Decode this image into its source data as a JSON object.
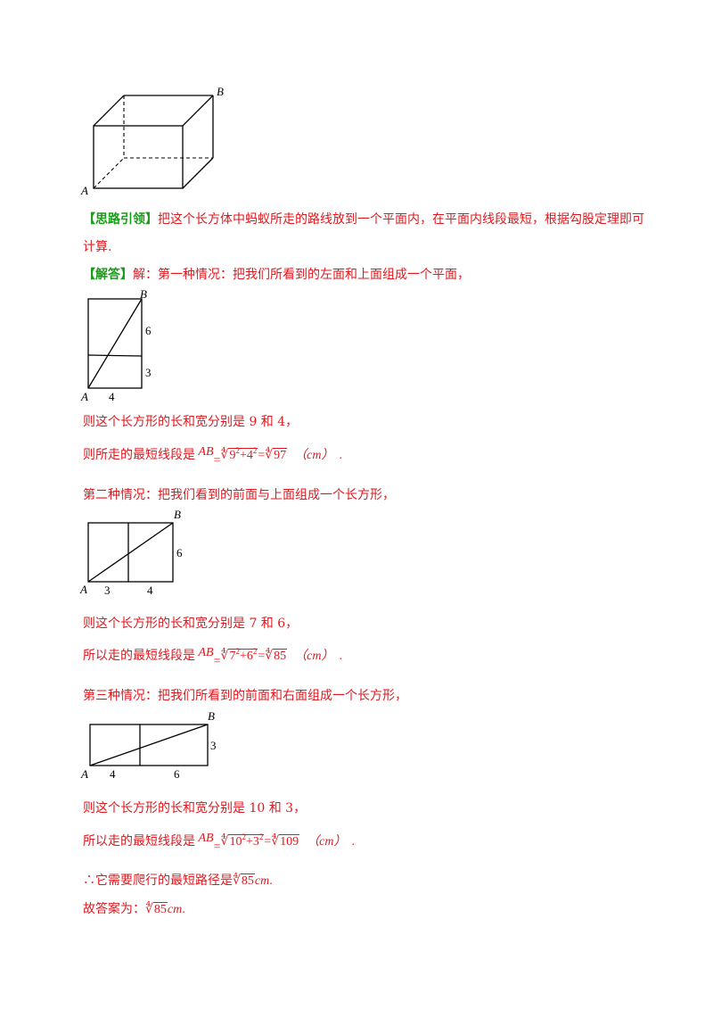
{
  "figures": {
    "cube": {
      "label_a": "A",
      "label_b": "B"
    },
    "fig1": {
      "label_a": "A",
      "label_b": "B",
      "dim_bottom": "4",
      "dim_right_top": "6",
      "dim_right_bottom": "3"
    },
    "fig2": {
      "label_a": "A",
      "label_b": "B",
      "dim_bottom_left": "3",
      "dim_bottom_right": "4",
      "dim_right": "6"
    },
    "fig3": {
      "label_a": "A",
      "label_b": "B",
      "dim_bottom_left": "4",
      "dim_bottom_right": "6",
      "dim_right": "3"
    }
  },
  "hint": {
    "tag": "【思路引领】",
    "line1": "把这个长方体中蚂蚁所走的路线放到一个平面内，在平面内线段最短，根据勾股定理即可",
    "line2": "计算."
  },
  "solution": {
    "tag": "【解答】",
    "intro": "解：第一种情况：把我们所看到的左面和上面组成一个平面，"
  },
  "case1": {
    "dims": "则这个长方形的长和宽分别是 9 和 4，",
    "prefix": "则所走的最短线段是 ",
    "ab": "AB",
    "eq": "=",
    "radicand_a": "9",
    "exp_a": "2",
    "plus": "+",
    "radicand_b": "4",
    "exp_b": "2",
    "eq2": "=",
    "result": "97",
    "unit": "（cm）",
    "end": "."
  },
  "case2": {
    "intro": "第二种情况：把我们看到的前面与上面组成一个长方形，",
    "dims": "则这个长方形的长和宽分别是 7 和 6，",
    "prefix": "所以走的最短线段是 ",
    "ab": "AB",
    "eq": "=",
    "radicand_a": "7",
    "exp_a": "2",
    "plus": "+",
    "radicand_b": "6",
    "exp_b": "2",
    "eq2": "=",
    "result": "85",
    "unit": "（cm）",
    "end": "."
  },
  "case3": {
    "intro": "第三种情况：把我们所看到的前面和右面组成一个长方形，",
    "dims": "则这个长方形的长和宽分别是 10 和 3，",
    "prefix": "所以走的最短线段是 ",
    "ab": "AB",
    "eq": "=",
    "radicand_a": "10",
    "exp_a": "2",
    "plus": "+",
    "radicand_b": "3",
    "exp_b": "2",
    "eq2": "=",
    "result": "109",
    "unit": "（cm）",
    "end": "."
  },
  "conclusion": {
    "prefix": "∴它需要爬行的最短路径是",
    "value": "85",
    "unit": "cm",
    "end": "."
  },
  "answer": {
    "prefix": "故答案为：",
    "value": "85",
    "unit": "cm",
    "end": "."
  }
}
